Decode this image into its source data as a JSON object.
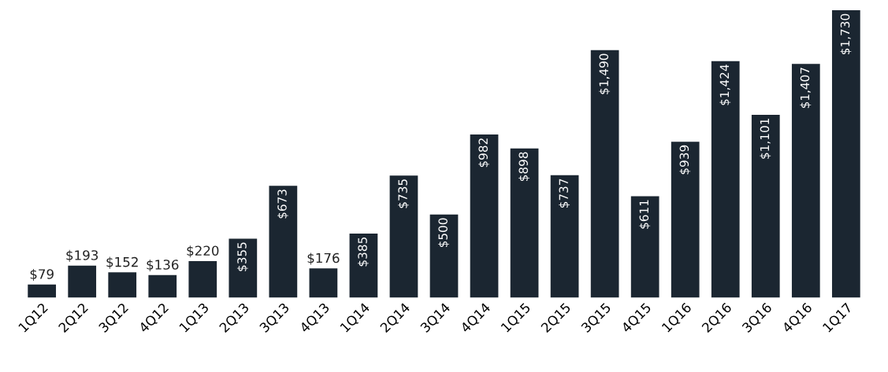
{
  "chart_data": {
    "type": "bar",
    "categories": [
      "1Q12",
      "2Q12",
      "3Q12",
      "4Q12",
      "1Q13",
      "2Q13",
      "3Q13",
      "4Q13",
      "1Q14",
      "2Q14",
      "3Q14",
      "4Q14",
      "1Q15",
      "2Q15",
      "3Q15",
      "4Q15",
      "1Q16",
      "2Q16",
      "3Q16",
      "4Q16",
      "1Q17"
    ],
    "values": [
      79,
      193,
      152,
      136,
      220,
      355,
      673,
      176,
      385,
      735,
      500,
      982,
      898,
      737,
      1490,
      611,
      939,
      1424,
      1101,
      1407,
      1730
    ],
    "value_labels": [
      "$79",
      "$193",
      "$152",
      "$136",
      "$220",
      "$355",
      "$673",
      "$176",
      "$385",
      "$735",
      "$500",
      "$982",
      "$898",
      "$737",
      "$1,490",
      "$611",
      "$939",
      "$1,424",
      "$1,101",
      "$1,407",
      "$1,730"
    ],
    "color": "#1b2631"
  }
}
